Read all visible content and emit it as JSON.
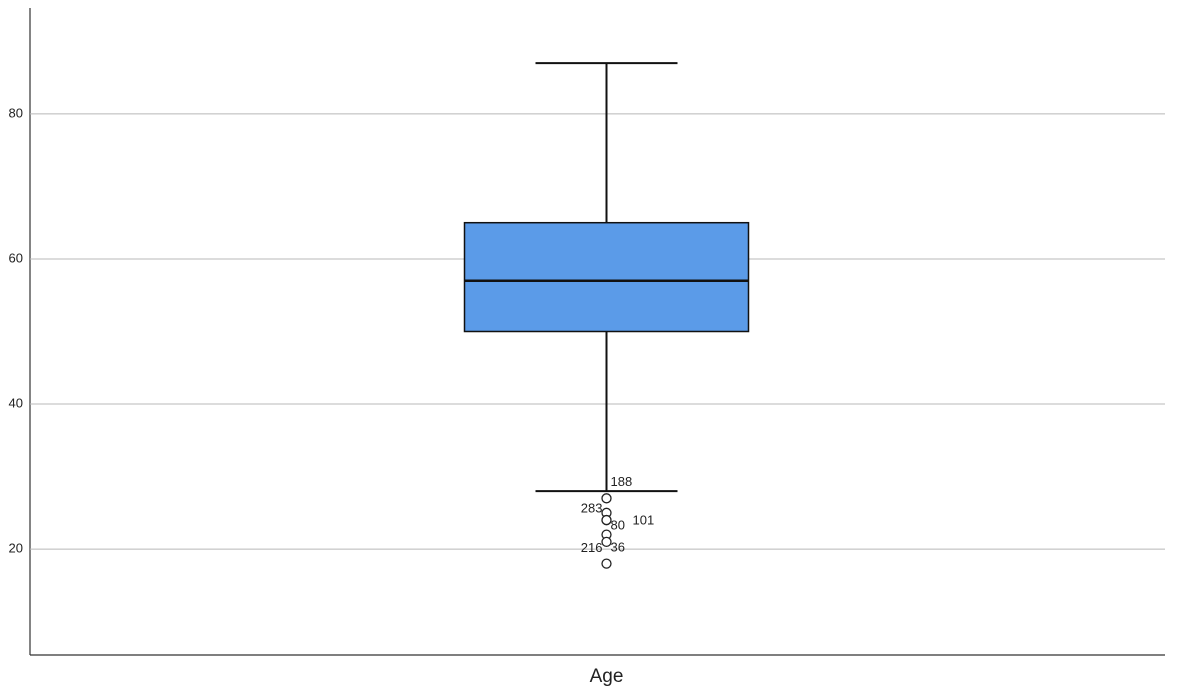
{
  "chart_data": {
    "type": "box",
    "categories": [
      "Age"
    ],
    "boxes": [
      {
        "whisker_low": 28,
        "q1": 50,
        "median": 57,
        "q3": 65,
        "whisker_high": 87,
        "outliers": [
          {
            "value": 27,
            "label": "188"
          },
          {
            "value": 25,
            "label": "283"
          },
          {
            "value": 24,
            "label": "80"
          },
          {
            "value": 24,
            "label": "101"
          },
          {
            "value": 22,
            "label": "216"
          },
          {
            "value": 21,
            "label": "36"
          },
          {
            "value": 18
          }
        ]
      }
    ],
    "color": "#5b9be8",
    "ylim": [
      5.4,
      94.6
    ],
    "yticks": [
      20,
      40,
      60,
      80
    ],
    "grid": true
  }
}
